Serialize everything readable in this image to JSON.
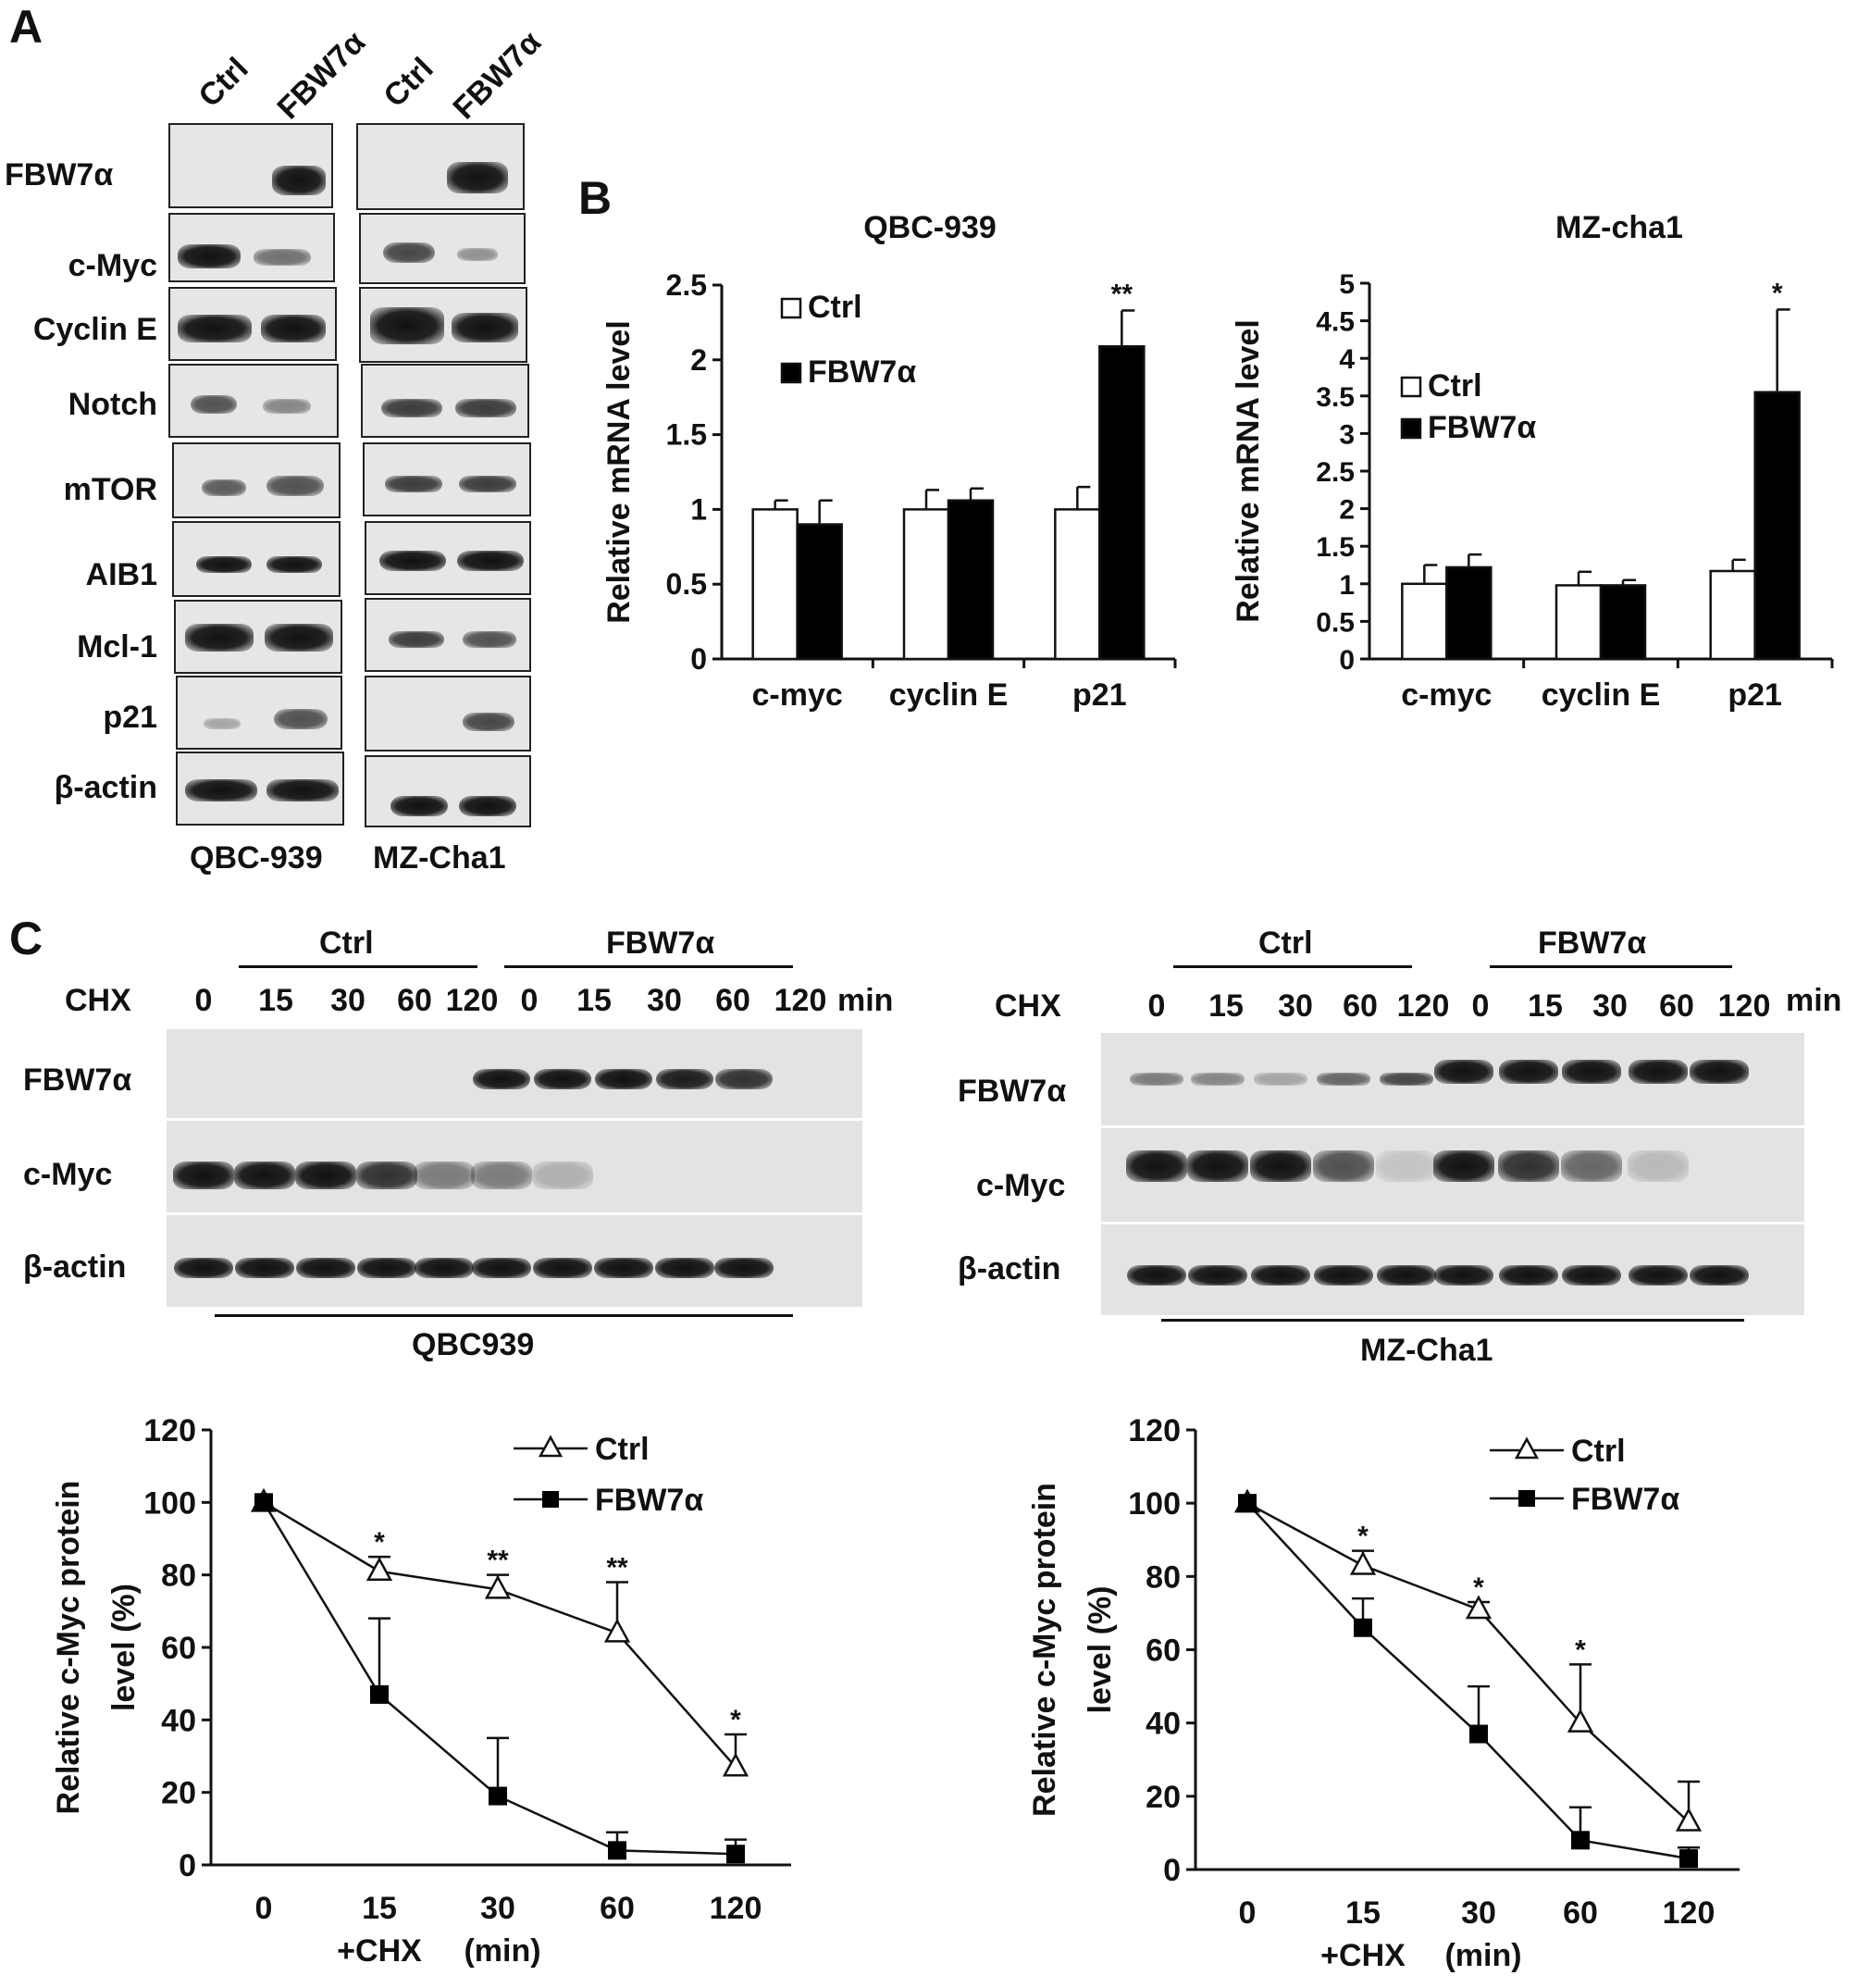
{
  "panel_A": {
    "letter": "A",
    "lanes": [
      "Ctrl",
      "FBW7α",
      "Ctrl",
      "FBW7α"
    ],
    "rows": [
      "FBW7α",
      "c-Myc",
      "Cyclin E",
      "Notch",
      "mTOR",
      "AIB1",
      "Mcl-1",
      "p21",
      "β-actin"
    ],
    "cell_lines": [
      "QBC-939",
      "MZ-Cha1"
    ]
  },
  "panel_B": {
    "letter": "B"
  },
  "panel_C": {
    "letter": "C",
    "left": {
      "ctrl_label": "Ctrl",
      "fbw_label": "FBW7α",
      "chx_label": "CHX",
      "times": [
        "0",
        "15",
        "30",
        "60",
        "120",
        "0",
        "15",
        "30",
        "60",
        "120"
      ],
      "unit": "min",
      "rows": [
        "FBW7α",
        "c-Myc",
        "β-actin"
      ],
      "cell_line": "QBC939"
    },
    "right": {
      "ctrl_label": "Ctrl",
      "fbw_label": "FBW7α",
      "chx_label": "CHX",
      "times": [
        "0",
        "15",
        "30",
        "60",
        "120",
        "0",
        "15",
        "30",
        "60",
        "120"
      ],
      "unit": "min",
      "rows": [
        "FBW7α",
        "c-Myc",
        "β-actin"
      ],
      "cell_line": "MZ-Cha1"
    }
  },
  "chart_data": [
    {
      "type": "bar",
      "title": "QBC-939",
      "ylabel": "Relative mRNA level",
      "categories": [
        "c-myc",
        "cyclin E",
        "p21"
      ],
      "ylim": [
        0,
        2.5
      ],
      "yticks": [
        "0",
        "0.5",
        "1",
        "1.5",
        "2",
        "2.5"
      ],
      "series": [
        {
          "name": "Ctrl",
          "values": [
            1.0,
            1.0,
            1.0
          ],
          "errors": [
            0.06,
            0.13,
            0.15
          ]
        },
        {
          "name": "FBW7α",
          "values": [
            0.9,
            1.06,
            2.09
          ],
          "errors": [
            0.16,
            0.08,
            0.24
          ]
        }
      ],
      "annotations": [
        {
          "category": "p21",
          "text": "**"
        }
      ],
      "legend": "top-left"
    },
    {
      "type": "bar",
      "title": "MZ-cha1",
      "ylabel": "Relative mRNA level",
      "categories": [
        "c-myc",
        "cyclin E",
        "p21"
      ],
      "ylim": [
        0,
        5
      ],
      "yticks": [
        "0",
        "0.5",
        "1",
        "1.5",
        "2",
        "2.5",
        "3",
        "3.5",
        "4",
        "4.5",
        "5"
      ],
      "series": [
        {
          "name": "Ctrl",
          "values": [
            1.0,
            0.98,
            1.17
          ],
          "errors": [
            0.25,
            0.18,
            0.15
          ]
        },
        {
          "name": "FBW7α",
          "values": [
            1.22,
            0.98,
            3.55
          ],
          "errors": [
            0.17,
            0.07,
            1.1
          ]
        }
      ],
      "annotations": [
        {
          "category": "p21",
          "text": "*"
        }
      ],
      "legend": "top-left"
    },
    {
      "type": "line",
      "ylabel": "Relative c-Myc protein level (%)",
      "ylabel_lines": [
        "Relative c-Myc protein",
        "level (%)"
      ],
      "x_categories": [
        "0",
        "15",
        "30",
        "60",
        "120"
      ],
      "xlabel_parts": [
        "+CHX",
        "(min)"
      ],
      "ylim": [
        0,
        120
      ],
      "yticks": [
        "0",
        "20",
        "40",
        "60",
        "80",
        "100",
        "120"
      ],
      "series": [
        {
          "name": "Ctrl",
          "marker": "open-triangle",
          "values": [
            100,
            81,
            76,
            64,
            27
          ],
          "errors": [
            0,
            4,
            4,
            14,
            9
          ]
        },
        {
          "name": "FBW7α",
          "marker": "filled-square",
          "values": [
            100,
            47,
            19,
            4,
            3
          ],
          "errors": [
            0,
            21,
            16,
            5,
            4
          ]
        }
      ],
      "annotations": [
        "",
        "*",
        "**",
        "**",
        "*"
      ],
      "legend": "top-right"
    },
    {
      "type": "line",
      "ylabel": "Relative c-Myc protein level (%)",
      "ylabel_lines": [
        "Relative c-Myc protein",
        "level (%)"
      ],
      "x_categories": [
        "0",
        "15",
        "30",
        "60",
        "120"
      ],
      "xlabel_parts": [
        "+CHX",
        "(min)"
      ],
      "ylim": [
        0,
        120
      ],
      "yticks": [
        "0",
        "20",
        "40",
        "60",
        "80",
        "100",
        "120"
      ],
      "series": [
        {
          "name": "Ctrl",
          "marker": "open-triangle",
          "values": [
            100,
            83,
            71,
            40,
            13
          ],
          "errors": [
            0,
            4,
            2,
            16,
            11
          ]
        },
        {
          "name": "FBW7α",
          "marker": "filled-square",
          "values": [
            100,
            66,
            37,
            8,
            3
          ],
          "errors": [
            0,
            8,
            13,
            9,
            3
          ]
        }
      ],
      "annotations": [
        "",
        "*",
        "*",
        "*",
        ""
      ],
      "legend": "top-right"
    }
  ]
}
